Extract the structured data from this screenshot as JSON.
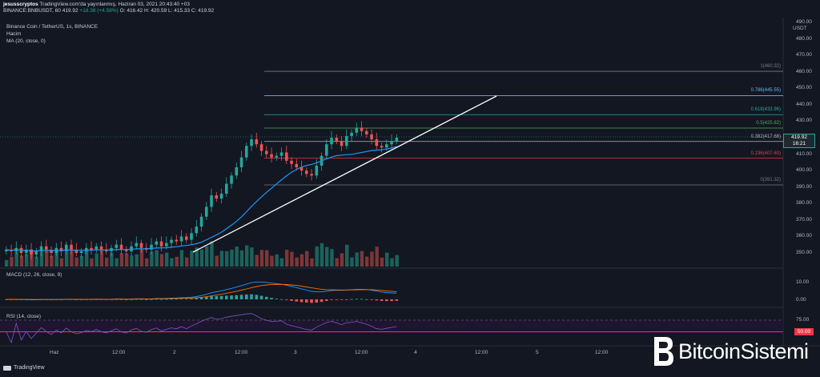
{
  "header": {
    "line1_author": "jesusscryptos",
    "line1_rest": "TradingView.com'da yayınlanmış, Haziran 03, 2021 20:43:40 +03",
    "line2_symbol": "BINANCE:BNBUSDT, 60",
    "line2_price": "419.92",
    "line2_change": "+18.38 (+4.58%)",
    "line2_ohlc": "O: 416.42  H: 420.59  L: 415.33  C: 419.92"
  },
  "legend": {
    "title": "Binance Coin / TetherUS, 1s, BINANCE",
    "volume": "Hacim",
    "ma": "MA (20, close, 0)"
  },
  "macd": {
    "title": "MACD (12, 26, close, 9)"
  },
  "rsi": {
    "title": "RSI (14, close)",
    "level": "50.00"
  },
  "price_axis": {
    "unit": "USDT",
    "ticks": [
      "490.00",
      "480.00",
      "470.00",
      "460.00",
      "450.00",
      "440.00",
      "430.00",
      "420.00",
      "410.00",
      "400.00",
      "390.00",
      "380.00",
      "370.00",
      "360.00",
      "350.00"
    ],
    "macd_ticks": [
      "10.00",
      "0.00"
    ],
    "rsi_ticks": [
      "75.00"
    ],
    "current_price": "419.92",
    "countdown": "16:21"
  },
  "fib_levels": [
    {
      "label": "1(460.32)",
      "color": "#787b86"
    },
    {
      "label": "0.786(445.55)",
      "color": "#64b5f6"
    },
    {
      "label": "0.618(433.96)",
      "color": "#26a69a"
    },
    {
      "label": "0.5(425.82)",
      "color": "#4caf50"
    },
    {
      "label": "0.382(417.68)",
      "color": "#b2b5be"
    },
    {
      "label": "0.236(407.60)",
      "color": "#f23645"
    },
    {
      "label": "0(391.32)",
      "color": "#787b86"
    }
  ],
  "time_axis": [
    "Haz",
    "12:00",
    "2",
    "12:00",
    "3",
    "12:00",
    "4",
    "12:00",
    "5",
    "12:00"
  ],
  "branding": {
    "tradingview": "TradingView",
    "watermark": "BitcoinSistemi"
  },
  "colors": {
    "up": "#26a69a",
    "down": "#ef5350",
    "ma": "#2196f3",
    "trend": "#ffffff",
    "rsi": "#7e57c2"
  },
  "chart_data": {
    "type": "candlestick",
    "series": [
      {
        "name": "BNBUSDT 1h close",
        "values": [
          352,
          351,
          353,
          350,
          352,
          349,
          351,
          354,
          352,
          350,
          353,
          351,
          355,
          352,
          350,
          351,
          353,
          352,
          354,
          352,
          351,
          353,
          355,
          352,
          351,
          354,
          356,
          353,
          352,
          355,
          357,
          354,
          356,
          358,
          357,
          360,
          358,
          362,
          366,
          372,
          378,
          385,
          383,
          386,
          392,
          397,
          402,
          408,
          415,
          419,
          416,
          412,
          410,
          408,
          409,
          411,
          406,
          404,
          402,
          400,
          398,
          397,
          403,
          409,
          416,
          420,
          418,
          415,
          421,
          423,
          426,
          424,
          422,
          419,
          415,
          414,
          416,
          418,
          420
        ]
      }
    ]
  }
}
